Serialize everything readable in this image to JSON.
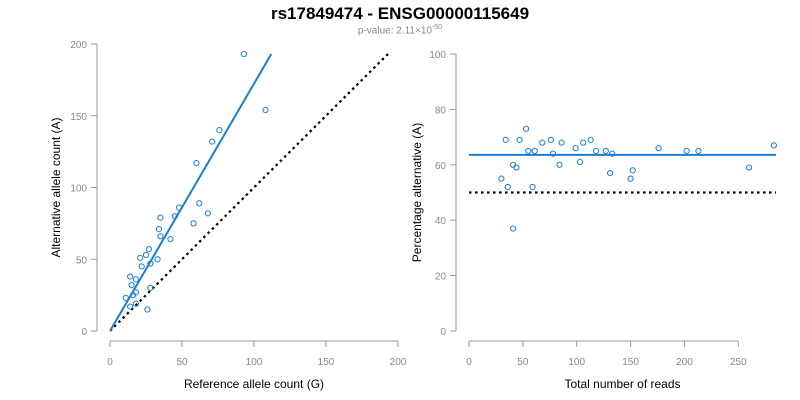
{
  "title": "rs17849474 - ENSG00000115649",
  "subtitle": {
    "prefix": "p-value: 2.11×10",
    "exponent": "-50"
  },
  "colors": {
    "points": "#1a7fd4",
    "fit_line": "#1a7fd4",
    "reference_line": "#000000",
    "axis": "#999999",
    "tick_text": "#888888"
  },
  "chart_data": [
    {
      "type": "scatter",
      "xlabel": "Reference allele count (G)",
      "ylabel": "Alternative allele count (A)",
      "xlim": [
        0,
        200
      ],
      "ylim": [
        0,
        200
      ],
      "xticks": [
        0,
        50,
        100,
        150,
        200
      ],
      "yticks": [
        0,
        50,
        100,
        150,
        200
      ],
      "grid": false,
      "points": [
        {
          "x": 93,
          "y": 193
        },
        {
          "x": 108,
          "y": 154
        },
        {
          "x": 76,
          "y": 140
        },
        {
          "x": 71,
          "y": 132
        },
        {
          "x": 60,
          "y": 117
        },
        {
          "x": 62,
          "y": 89
        },
        {
          "x": 48,
          "y": 86
        },
        {
          "x": 45,
          "y": 80
        },
        {
          "x": 35,
          "y": 79
        },
        {
          "x": 68,
          "y": 82
        },
        {
          "x": 58,
          "y": 75
        },
        {
          "x": 34,
          "y": 71
        },
        {
          "x": 35,
          "y": 66
        },
        {
          "x": 42,
          "y": 64
        },
        {
          "x": 27,
          "y": 57
        },
        {
          "x": 25,
          "y": 53
        },
        {
          "x": 21,
          "y": 51
        },
        {
          "x": 33,
          "y": 50
        },
        {
          "x": 28,
          "y": 47
        },
        {
          "x": 22,
          "y": 45
        },
        {
          "x": 14,
          "y": 38
        },
        {
          "x": 18,
          "y": 36
        },
        {
          "x": 15,
          "y": 32
        },
        {
          "x": 18,
          "y": 27
        },
        {
          "x": 28,
          "y": 30
        },
        {
          "x": 16,
          "y": 25
        },
        {
          "x": 11,
          "y": 23
        },
        {
          "x": 18,
          "y": 19
        },
        {
          "x": 14,
          "y": 17
        },
        {
          "x": 26,
          "y": 15
        }
      ],
      "fit_line": {
        "x": [
          0,
          112
        ],
        "y": [
          0,
          193
        ]
      },
      "reference_line": {
        "x": [
          0,
          193
        ],
        "y": [
          0,
          193
        ],
        "style": "dotted"
      }
    },
    {
      "type": "scatter",
      "xlabel": "Total number of reads",
      "ylabel": "Percentage alternative (A)",
      "xlim": [
        0,
        285
      ],
      "ylim": [
        0,
        100
      ],
      "xticks": [
        0,
        50,
        100,
        150,
        200,
        250
      ],
      "yticks": [
        0,
        20,
        40,
        60,
        80,
        100
      ],
      "grid": false,
      "points": [
        {
          "x": 30,
          "y": 55
        },
        {
          "x": 34,
          "y": 69
        },
        {
          "x": 36,
          "y": 52
        },
        {
          "x": 41,
          "y": 60
        },
        {
          "x": 44,
          "y": 59
        },
        {
          "x": 41,
          "y": 37
        },
        {
          "x": 47,
          "y": 69
        },
        {
          "x": 53,
          "y": 73
        },
        {
          "x": 55,
          "y": 65
        },
        {
          "x": 59,
          "y": 52
        },
        {
          "x": 61,
          "y": 65
        },
        {
          "x": 68,
          "y": 68
        },
        {
          "x": 76,
          "y": 69
        },
        {
          "x": 78,
          "y": 64
        },
        {
          "x": 84,
          "y": 60
        },
        {
          "x": 86,
          "y": 68
        },
        {
          "x": 99,
          "y": 66
        },
        {
          "x": 103,
          "y": 61
        },
        {
          "x": 106,
          "y": 68
        },
        {
          "x": 113,
          "y": 69
        },
        {
          "x": 118,
          "y": 65
        },
        {
          "x": 127,
          "y": 65
        },
        {
          "x": 131,
          "y": 57
        },
        {
          "x": 133,
          "y": 64
        },
        {
          "x": 150,
          "y": 55
        },
        {
          "x": 152,
          "y": 58
        },
        {
          "x": 176,
          "y": 66
        },
        {
          "x": 202,
          "y": 65
        },
        {
          "x": 213,
          "y": 65
        },
        {
          "x": 260,
          "y": 59
        },
        {
          "x": 283,
          "y": 67
        }
      ],
      "fit_line": {
        "x": [
          0,
          285
        ],
        "y": [
          63.6,
          63.6
        ]
      },
      "reference_line": {
        "x": [
          0,
          285
        ],
        "y": [
          50,
          50
        ],
        "style": "dotted"
      }
    }
  ]
}
